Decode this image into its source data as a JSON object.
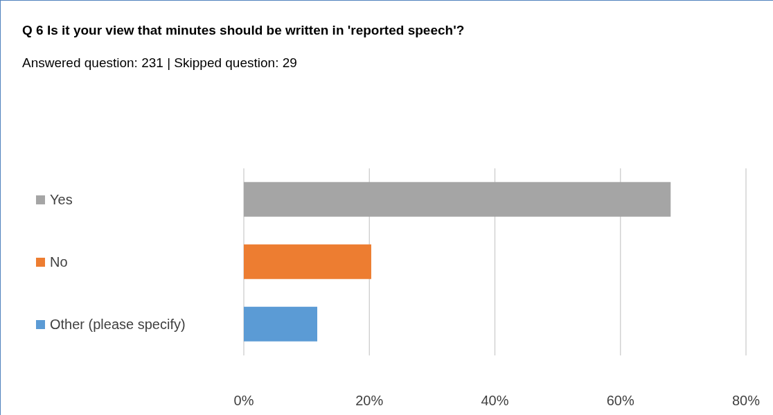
{
  "chart_data": {
    "type": "bar",
    "orientation": "horizontal",
    "title": "Q 6 Is it your view that minutes should be written in 'reported speech'?",
    "subtitle": "Answered question: 231 | Skipped question: 29",
    "categories": [
      "Yes",
      "No",
      "Other (please specify)"
    ],
    "values": [
      68,
      20.3,
      11.7
    ],
    "colors": [
      "#a5a5a5",
      "#ed7d31",
      "#5b9bd5"
    ],
    "xlim": [
      0,
      80
    ],
    "xticks": [
      {
        "value": 0,
        "label": "0%"
      },
      {
        "value": 20,
        "label": "20%"
      },
      {
        "value": 40,
        "label": "40%"
      },
      {
        "value": 60,
        "label": "60%"
      },
      {
        "value": 80,
        "label": "80%"
      }
    ],
    "grid": "x"
  }
}
